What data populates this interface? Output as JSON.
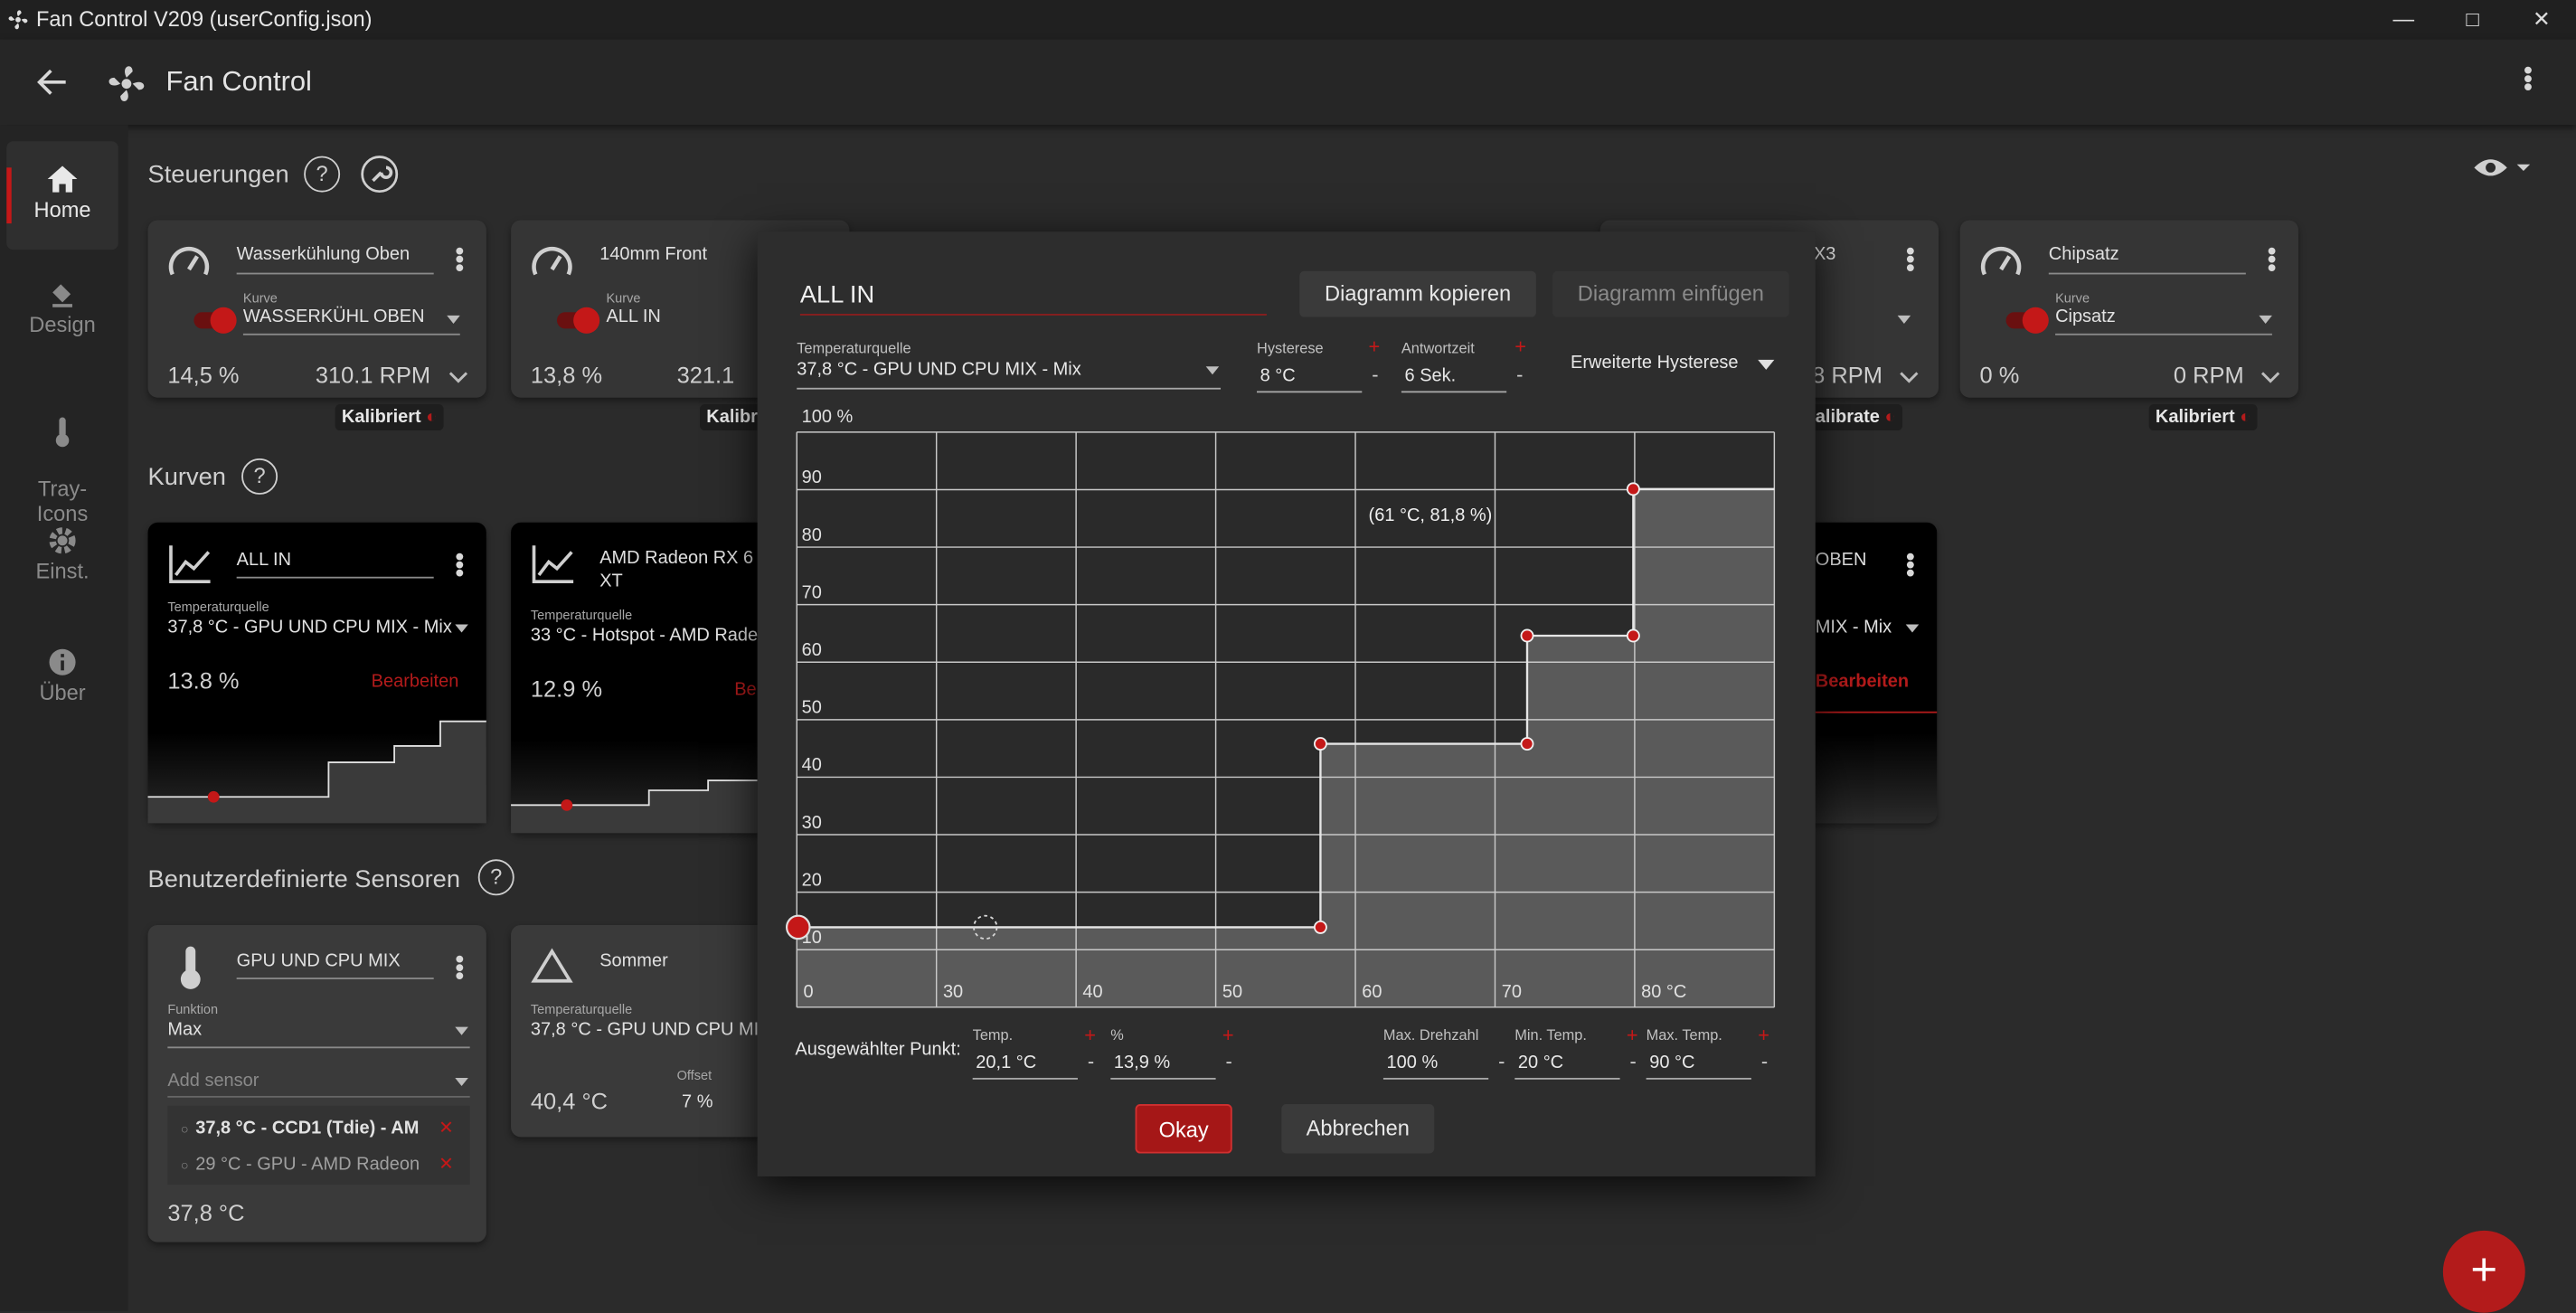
{
  "window": {
    "title": "Fan Control V209 (userConfig.json)"
  },
  "appbar": {
    "title": "Fan Control"
  },
  "nav": {
    "items": [
      {
        "label": "Home",
        "icon": "home-icon"
      },
      {
        "label": "Design",
        "icon": "paint-bucket-icon"
      },
      {
        "label": "Tray-\nIcons",
        "icon": "thermometer-icon"
      },
      {
        "label": "Einst.",
        "icon": "gear-icon"
      },
      {
        "label": "Über",
        "icon": "info-icon"
      }
    ]
  },
  "sections": {
    "controls": "Steuerungen",
    "curves": "Kurven",
    "sensors": "Benutzerdefinierte Sensoren"
  },
  "controls": [
    {
      "name": "Wasserkühlung Oben",
      "curve_label": "Kurve",
      "curve": "WASSERKÜHL OBEN",
      "percent": "14,5 %",
      "rpm": "310.1 RPM",
      "badge": "Kalibriert"
    },
    {
      "name": "140mm Front",
      "curve_label": "Kurve",
      "curve": "ALL IN",
      "percent": "13,8 %",
      "rpm": "321.1",
      "badge": "Kalibri"
    },
    {
      "name": "X3",
      "rpm": "8 RPM",
      "badge": "alibrate"
    },
    {
      "name": "Chipsatz",
      "curve_label": "Kurve",
      "curve": "Cipsatz",
      "percent": "0 %",
      "rpm": "0 RPM",
      "badge": "Kalibriert"
    }
  ],
  "curves": [
    {
      "name": "ALL IN",
      "source_label": "Temperaturquelle",
      "source": "37,8 °C - GPU UND CPU MIX - Mix",
      "value": "13.8 %",
      "edit": "Bearbeiten"
    },
    {
      "name": "AMD Radeon RX 6\nXT",
      "source_label": "Temperaturquelle",
      "source": "33 °C - Hotspot - AMD Rade",
      "value": "12.9 %",
      "edit": "Be"
    },
    {
      "name": "OBEN",
      "source": "MIX - Mix",
      "edit": "Bearbeiten"
    }
  ],
  "sensors": [
    {
      "name": "GPU UND CPU MIX",
      "func_label": "Funktion",
      "func": "Max",
      "add_placeholder": "Add sensor",
      "items": [
        "37,8 °C - CCD1 (Tdie) - AM",
        "29 °C - GPU - AMD Radeon"
      ],
      "value": "37,8 °C"
    },
    {
      "name": "Sommer",
      "source_label": "Temperaturquelle",
      "source": "37,8 °C - GPU UND CPU MIX",
      "value": "40,4 °C",
      "offset_label": "Offset",
      "offset": "7 %"
    }
  ],
  "dialog": {
    "name": "ALL IN",
    "copy_btn": "Diagramm kopieren",
    "paste_btn": "Diagramm einfügen",
    "source_label": "Temperaturquelle",
    "source": "37,8 °C - GPU UND CPU MIX - Mix",
    "hyst_label": "Hysterese",
    "hyst": "8 °C",
    "resp_label": "Antwortzeit",
    "resp": "6 Sek.",
    "adv_hyst": "Erweiterte Hysterese",
    "selected_label": "Ausgewählter Punkt:",
    "temp_label": "Temp.",
    "temp": "20,1 °C",
    "pct_label": "%",
    "pct": "13,9 %",
    "maxrpm_label": "Max. Drehzahl",
    "maxrpm": "100 %",
    "mintemp_label": "Min. Temp.",
    "mintemp": "20 °C",
    "maxtemp_label": "Max. Temp.",
    "maxtemp": "90 °C",
    "ok": "Okay",
    "cancel": "Abbrechen",
    "minus": "-",
    "plus": "+"
  },
  "chart_data": {
    "type": "area",
    "x_tick_labels": [
      "0",
      "30",
      "40",
      "50",
      "60",
      "70",
      "80 °C"
    ],
    "y_tick_labels": [
      "100 %",
      "90",
      "80",
      "70",
      "60",
      "50",
      "40",
      "30",
      "20",
      "10"
    ],
    "xlim": [
      20,
      90
    ],
    "ylim": [
      0,
      100
    ],
    "points": [
      {
        "x": 20.1,
        "y": 13.9
      },
      {
        "x": 57.5,
        "y": 13.9
      },
      {
        "x": 57.5,
        "y": 45.8
      },
      {
        "x": 72.3,
        "y": 45.8
      },
      {
        "x": 72.3,
        "y": 64.6
      },
      {
        "x": 79.9,
        "y": 64.6
      },
      {
        "x": 79.9,
        "y": 90.1
      }
    ],
    "tooltip": "(61 °C, 81,8 %)",
    "hover_point": {
      "x": 33.5,
      "y": 13.9
    },
    "line_color": "#e6e6e6",
    "point_color": "#c41818",
    "fill_color": "#5a5a5a"
  },
  "fab": {
    "label": "+"
  }
}
